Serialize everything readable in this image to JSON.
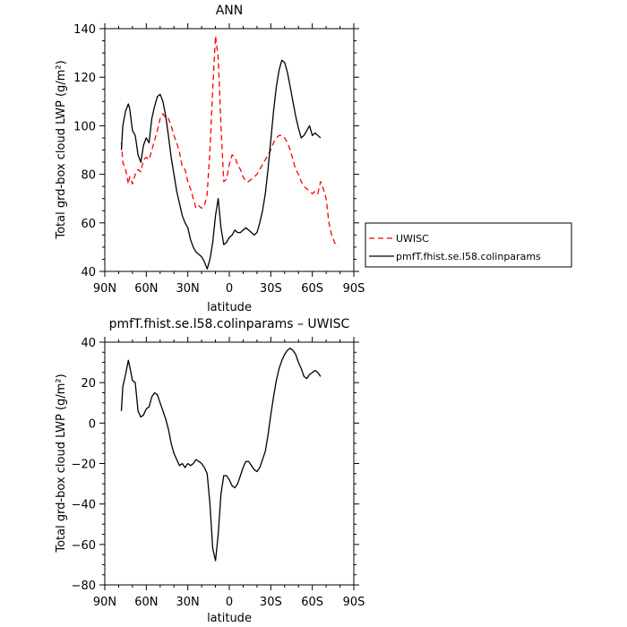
{
  "chart_data": [
    {
      "type": "line",
      "title": "ANN",
      "xlabel": "latitude",
      "ylabel": "Total grd-box cloud LWP (g/m²)",
      "xlim": [
        90,
        -90
      ],
      "ylim": [
        40,
        140
      ],
      "x_ticks": [
        90,
        60,
        30,
        0,
        -30,
        -60,
        -90
      ],
      "x_tick_labels": [
        "90N",
        "60N",
        "30N",
        "0",
        "30S",
        "60S",
        "90S"
      ],
      "y_ticks": [
        40,
        60,
        80,
        100,
        120,
        140
      ],
      "y_tick_labels": [
        "40",
        "60",
        "80",
        "100",
        "120",
        "140"
      ],
      "legend": "outside-right",
      "series": [
        {
          "name": "UWISC",
          "color": "#ff0000",
          "dash": "dashed",
          "x": [
            78,
            77,
            75,
            73,
            72,
            70,
            68,
            66,
            64,
            62,
            60,
            58,
            56,
            54,
            52,
            50,
            48,
            46,
            44,
            42,
            40,
            38,
            36,
            34,
            32,
            30,
            28,
            26,
            24,
            22,
            20,
            18,
            16,
            14,
            12,
            10,
            8,
            6,
            4,
            2,
            0,
            -2,
            -4,
            -6,
            -8,
            -10,
            -12,
            -14,
            -16,
            -18,
            -20,
            -22,
            -24,
            -26,
            -28,
            -30,
            -32,
            -34,
            -36,
            -38,
            -40,
            -42,
            -44,
            -46,
            -48,
            -50,
            -52,
            -54,
            -56,
            -58,
            -60,
            -62,
            -64,
            -66,
            -68,
            -70,
            -72,
            -74,
            -76,
            -78
          ],
          "y": [
            93,
            85,
            82,
            76,
            79,
            76,
            80,
            82,
            81,
            86,
            87,
            86,
            90,
            94,
            98,
            103,
            105,
            103,
            103,
            100,
            96,
            93,
            89,
            83,
            82,
            77,
            74,
            70,
            66,
            67,
            66,
            67,
            72,
            90,
            115,
            137,
            128,
            100,
            77,
            78,
            84,
            88,
            87,
            84,
            82,
            79,
            77,
            77,
            78,
            79,
            80,
            82,
            84,
            86,
            88,
            90,
            93,
            95,
            96,
            96,
            95,
            93,
            90,
            86,
            82,
            80,
            77,
            75,
            74,
            73,
            72,
            73,
            72,
            77,
            74,
            70,
            60,
            55,
            52,
            50
          ]
        },
        {
          "name": "pmfT.fhist.se.l58.colinparams",
          "color": "#000000",
          "dash": "solid",
          "x": [
            78,
            77,
            75,
            73,
            72,
            70,
            68,
            66,
            64,
            62,
            60,
            58,
            56,
            54,
            52,
            50,
            48,
            46,
            44,
            42,
            40,
            38,
            36,
            34,
            32,
            30,
            28,
            26,
            24,
            22,
            20,
            18,
            16,
            14,
            12,
            10,
            8,
            6,
            4,
            2,
            0,
            -2,
            -4,
            -6,
            -8,
            -10,
            -12,
            -14,
            -16,
            -18,
            -20,
            -22,
            -24,
            -26,
            -28,
            -30,
            -32,
            -34,
            -36,
            -38,
            -40,
            -42,
            -44,
            -46,
            -48,
            -50,
            -52,
            -54,
            -56,
            -58,
            -60,
            -62,
            -64,
            -66
          ],
          "y": [
            90,
            100,
            106,
            109,
            107,
            98,
            96,
            88,
            85,
            92,
            95,
            93,
            103,
            108,
            112,
            113,
            110,
            104,
            96,
            87,
            80,
            73,
            68,
            63,
            60,
            58,
            53,
            50,
            48,
            47,
            46,
            44,
            41,
            45,
            52,
            63,
            70,
            58,
            51,
            52,
            54,
            55,
            57,
            56,
            56,
            57,
            58,
            57,
            56,
            55,
            56,
            60,
            65,
            72,
            82,
            94,
            106,
            116,
            123,
            127,
            126,
            122,
            116,
            110,
            104,
            99,
            95,
            96,
            98,
            100,
            96,
            97,
            96,
            95
          ]
        }
      ]
    },
    {
      "type": "line",
      "title": "pmfT.fhist.se.l58.colinparams – UWISC",
      "xlabel": "latitude",
      "ylabel": "Total grd-box cloud LWP (g/m²)",
      "xlim": [
        90,
        -90
      ],
      "ylim": [
        -80,
        40
      ],
      "x_ticks": [
        90,
        60,
        30,
        0,
        -30,
        -60,
        -90
      ],
      "x_tick_labels": [
        "90N",
        "60N",
        "30N",
        "0",
        "30S",
        "60S",
        "90S"
      ],
      "y_ticks": [
        -80,
        -60,
        -40,
        -20,
        0,
        20,
        40
      ],
      "y_tick_labels": [
        "−80",
        "−60",
        "−40",
        "−20",
        "0",
        "20",
        "40"
      ],
      "series": [
        {
          "color": "#000000",
          "dash": "solid",
          "x": [
            78,
            77,
            75,
            73,
            72,
            70,
            68,
            66,
            64,
            62,
            60,
            58,
            56,
            54,
            52,
            50,
            48,
            46,
            44,
            42,
            40,
            38,
            36,
            34,
            32,
            30,
            28,
            26,
            24,
            22,
            20,
            18,
            16,
            14,
            12,
            10,
            8,
            6,
            4,
            2,
            0,
            -2,
            -4,
            -6,
            -8,
            -10,
            -12,
            -14,
            -16,
            -18,
            -20,
            -22,
            -24,
            -26,
            -28,
            -30,
            -32,
            -34,
            -36,
            -38,
            -40,
            -42,
            -44,
            -46,
            -48,
            -50,
            -52,
            -54,
            -56,
            -58,
            -60,
            -62,
            -64,
            -66
          ],
          "y": [
            6,
            18,
            24,
            31,
            28,
            21,
            20,
            6,
            3,
            4,
            7,
            8,
            13,
            15,
            14,
            10,
            6,
            2,
            -3,
            -10,
            -15,
            -18,
            -21,
            -20,
            -22,
            -20,
            -21,
            -20,
            -18,
            -19,
            -20,
            -22,
            -25,
            -40,
            -62,
            -68,
            -55,
            -35,
            -26,
            -26,
            -28,
            -31,
            -32,
            -30,
            -26,
            -22,
            -19,
            -19,
            -21,
            -23,
            -24,
            -22,
            -18,
            -14,
            -6,
            4,
            13,
            21,
            27,
            31,
            34,
            36,
            37,
            36,
            34,
            30,
            27,
            23,
            22,
            24,
            25,
            26,
            25,
            23
          ]
        }
      ]
    }
  ]
}
